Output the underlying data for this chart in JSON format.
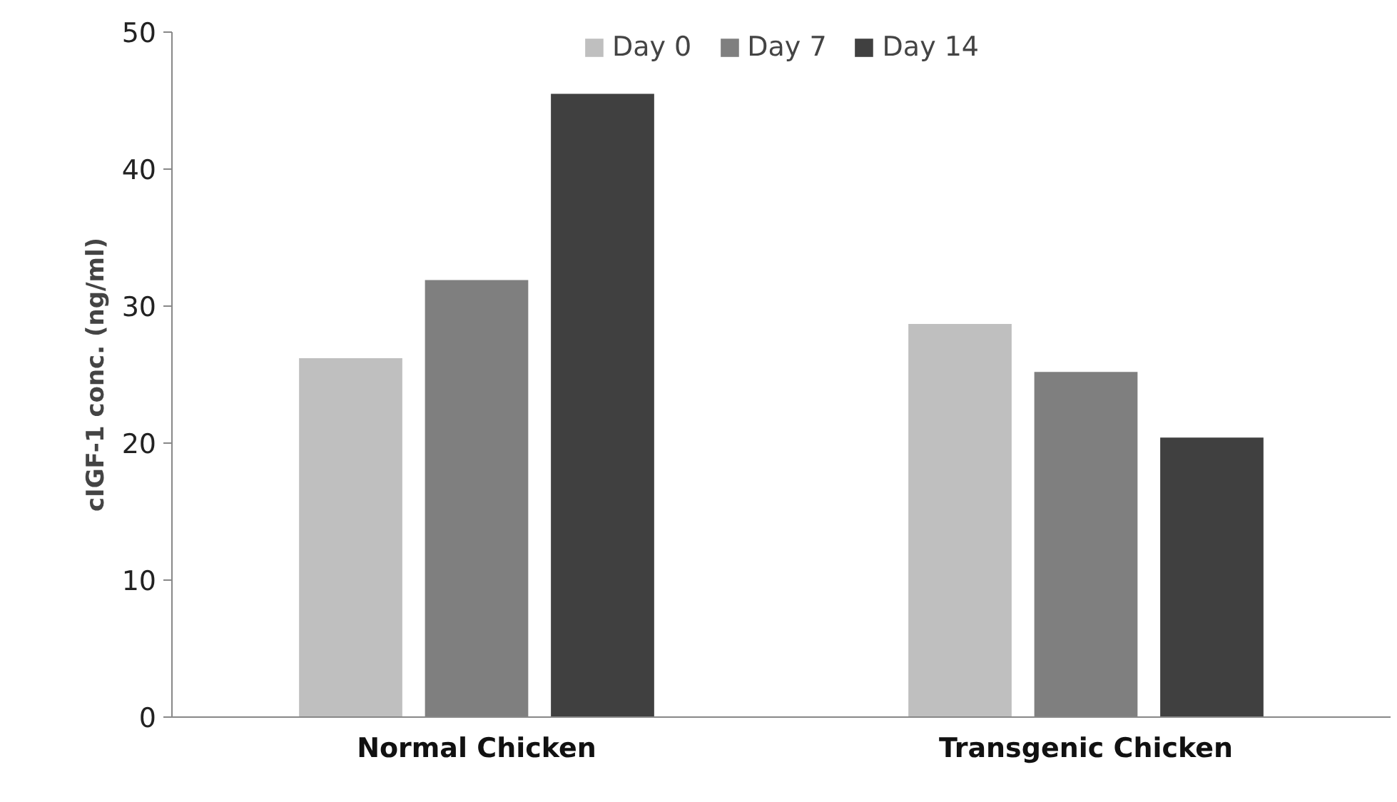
{
  "chart_data": {
    "type": "bar",
    "ylabel": "cIGF-1 conc. (ng/ml)",
    "categories": [
      "Normal Chicken",
      "Transgenic Chicken"
    ],
    "series": [
      {
        "name": "Day 0",
        "color": "#bfbfbf",
        "values": [
          26.2,
          28.7
        ]
      },
      {
        "name": "Day 7",
        "color": "#7f7f7f",
        "values": [
          31.9,
          25.2
        ]
      },
      {
        "name": "Day 14",
        "color": "#404040",
        "values": [
          45.5,
          20.4
        ]
      }
    ],
    "ylim": [
      0,
      50
    ],
    "yticks": [
      0,
      10,
      20,
      30,
      40,
      50
    ],
    "grid": false,
    "legend": "top"
  }
}
